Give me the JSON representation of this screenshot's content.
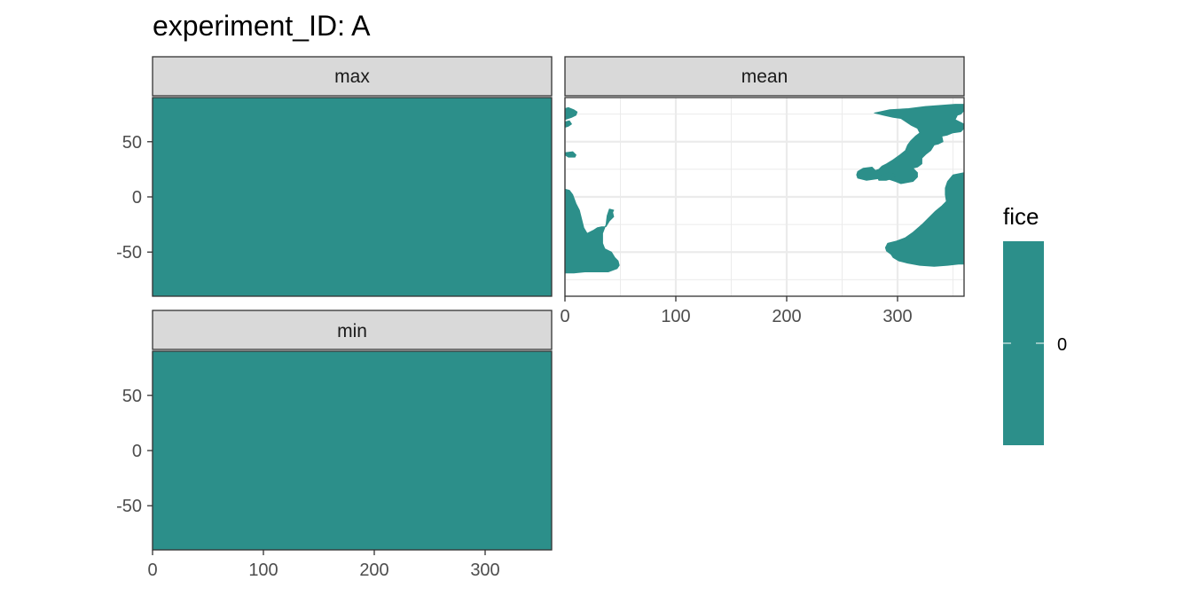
{
  "title": "experiment_ID: A",
  "legend": {
    "title": "fice",
    "labels": [
      "0"
    ],
    "color": "#2C8F8A"
  },
  "colors": {
    "fill": "#2C8F8A",
    "strip": "#D9D9D9",
    "grid": "#EBEBEB",
    "border": "#333333"
  },
  "chart_data": {
    "type": "heatmap",
    "title": "experiment_ID: A",
    "xlabel": "",
    "ylabel": "",
    "xlim": [
      0,
      360
    ],
    "ylim": [
      -90,
      90
    ],
    "x_ticks": [
      0,
      100,
      200,
      300
    ],
    "y_ticks": [
      -50,
      0,
      50
    ],
    "x_tick_labels": [
      "0",
      "100",
      "200",
      "300"
    ],
    "y_tick_labels": [
      "-50",
      "0",
      "50"
    ],
    "fill_variable": "fice",
    "fill_value": 0,
    "grid": true,
    "legend_position": "right",
    "panels": [
      {
        "name": "max",
        "coverage": "full"
      },
      {
        "name": "mean",
        "coverage": "partial",
        "regions": [
          {
            "id": "west-polygon-1",
            "points": [
              [
                0,
                80
              ],
              [
                3,
                81
              ],
              [
                8,
                79
              ],
              [
                11,
                77
              ],
              [
                10,
                74
              ],
              [
                6,
                72
              ],
              [
                3,
                71
              ],
              [
                0,
                70
              ]
            ]
          },
          {
            "id": "west-polygon-2",
            "points": [
              [
                0,
                68
              ],
              [
                4,
                69
              ],
              [
                6,
                66
              ],
              [
                3,
                64
              ],
              [
                0,
                63
              ]
            ]
          },
          {
            "id": "west-polygon-3",
            "points": [
              [
                0,
                40
              ],
              [
                7,
                41
              ],
              [
                10,
                38
              ],
              [
                9,
                36
              ],
              [
                3,
                36
              ],
              [
                0,
                38
              ]
            ]
          },
          {
            "id": "west-polygon-4",
            "points": [
              [
                0,
                7
              ],
              [
                4,
                6
              ],
              [
                7,
                2
              ],
              [
                10,
                -6
              ],
              [
                13,
                -12
              ],
              [
                15,
                -20
              ],
              [
                17,
                -28
              ],
              [
                20,
                -33
              ],
              [
                26,
                -30
              ],
              [
                29,
                -28
              ],
              [
                33,
                -27
              ],
              [
                37,
                -27
              ],
              [
                40,
                -22
              ],
              [
                44,
                -18
              ],
              [
                43,
                -14
              ],
              [
                44,
                -12
              ],
              [
                40,
                -11
              ],
              [
                38,
                -17
              ],
              [
                37,
                -25
              ],
              [
                34,
                -33
              ],
              [
                34,
                -42
              ],
              [
                36,
                -47
              ],
              [
                42,
                -50
              ],
              [
                45,
                -55
              ],
              [
                48,
                -58
              ],
              [
                49,
                -62
              ],
              [
                47,
                -65
              ],
              [
                39,
                -68
              ],
              [
                29,
                -68
              ],
              [
                18,
                -68
              ],
              [
                8,
                -69
              ],
              [
                0,
                -69
              ]
            ]
          },
          {
            "id": "east-polygon-1",
            "points": [
              [
                279,
                76
              ],
              [
                293,
                79
              ],
              [
                310,
                80
              ],
              [
                325,
                82
              ],
              [
                340,
                83
              ],
              [
                352,
                84
              ],
              [
                360,
                84
              ],
              [
                360,
                78
              ],
              [
                357,
                75
              ],
              [
                354,
                74
              ],
              [
                352,
                70
              ],
              [
                356,
                68
              ],
              [
                360,
                66
              ],
              [
                360,
                62
              ],
              [
                357,
                59
              ],
              [
                350,
                58
              ],
              [
                345,
                56
              ],
              [
                340,
                55
              ],
              [
                341,
                50
              ],
              [
                337,
                48
              ],
              [
                333,
                47
              ],
              [
                330,
                42
              ],
              [
                326,
                39
              ],
              [
                322,
                35
              ],
              [
                322,
                30
              ],
              [
                318,
                27
              ],
              [
                314,
                26
              ],
              [
                318,
                22
              ],
              [
                318,
                18
              ],
              [
                314,
                14
              ],
              [
                303,
                12
              ],
              [
                298,
                14
              ],
              [
                292,
                16
              ],
              [
                286,
                17
              ],
              [
                279,
                16
              ],
              [
                272,
                15
              ],
              [
                264,
                17
              ],
              [
                263,
                20
              ],
              [
                264,
                23
              ],
              [
                269,
                26
              ],
              [
                277,
                27
              ],
              [
                280,
                24
              ],
              [
                283,
                25
              ],
              [
                286,
                28
              ],
              [
                290,
                30
              ],
              [
                295,
                33
              ],
              [
                302,
                38
              ],
              [
                307,
                42
              ],
              [
                309,
                47
              ],
              [
                312,
                51
              ],
              [
                316,
                55
              ],
              [
                320,
                58
              ],
              [
                318,
                62
              ],
              [
                312,
                65
              ],
              [
                306,
                69
              ],
              [
                303,
                71
              ],
              [
                296,
                72
              ],
              [
                287,
                74
              ]
            ]
          },
          {
            "id": "east-polygon-2",
            "points": [
              [
                282,
                18
              ],
              [
                286,
                20
              ],
              [
                292,
                22
              ],
              [
                298,
                21
              ],
              [
                297,
                17
              ],
              [
                290,
                15
              ],
              [
                283,
                15
              ]
            ]
          },
          {
            "id": "east-polygon-3",
            "points": [
              [
                360,
                22
              ],
              [
                350,
                20
              ],
              [
                345,
                14
              ],
              [
                343,
                8
              ],
              [
                343,
                2
              ],
              [
                344,
                -4
              ],
              [
                340,
                -8
              ],
              [
                334,
                -13
              ],
              [
                328,
                -19
              ],
              [
                322,
                -25
              ],
              [
                314,
                -32
              ],
              [
                307,
                -37
              ],
              [
                299,
                -40
              ],
              [
                291,
                -42
              ],
              [
                289,
                -46
              ],
              [
                290,
                -49
              ],
              [
                294,
                -52
              ],
              [
                296,
                -55
              ],
              [
                301,
                -58
              ],
              [
                309,
                -60
              ],
              [
                320,
                -62
              ],
              [
                333,
                -63
              ],
              [
                345,
                -62
              ],
              [
                355,
                -61
              ],
              [
                360,
                -61
              ]
            ]
          }
        ]
      },
      {
        "name": "min",
        "coverage": "full"
      }
    ]
  }
}
